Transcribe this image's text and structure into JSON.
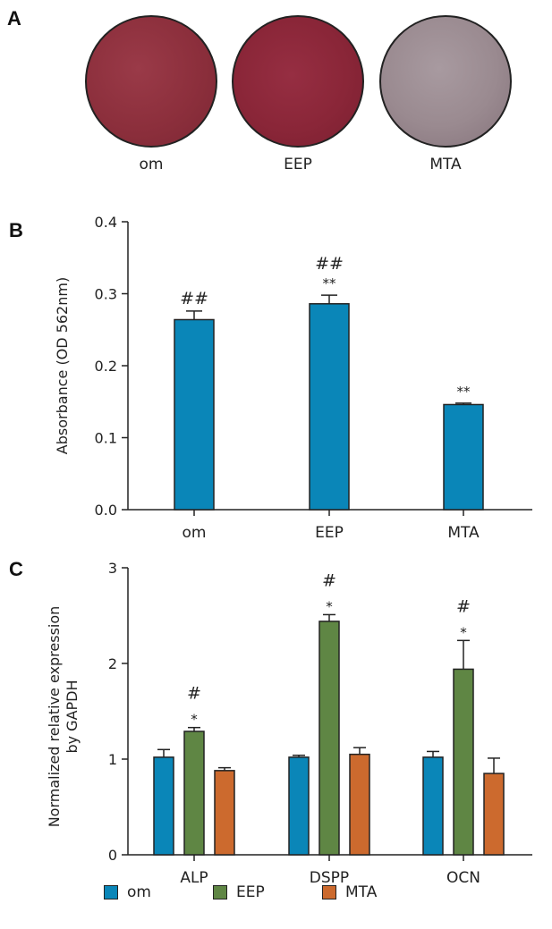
{
  "panel_a": {
    "letter": "A",
    "dishes": [
      {
        "label": "om",
        "color": "#8c2f3c"
      },
      {
        "label": "EEP",
        "color": "#8a2638"
      },
      {
        "label": "MTA",
        "color": "#9a8a90"
      }
    ]
  },
  "colors": {
    "om": "#0a86b8",
    "EEP": "#5f8644",
    "MTA": "#cc6a2e"
  },
  "chart_data": [
    {
      "type": "bar",
      "panel": "B",
      "ylabel": "Absorbance (OD 562nm)",
      "xlabel": "",
      "categories": [
        "om",
        "EEP",
        "MTA"
      ],
      "values": [
        0.264,
        0.286,
        0.146
      ],
      "errors": [
        0.012,
        0.012,
        0.002
      ],
      "annotations": [
        [
          "##"
        ],
        [
          "##",
          "**"
        ],
        [
          "**"
        ]
      ],
      "ylim": [
        0,
        0.4
      ],
      "yticks": [
        "0.0",
        "0.1",
        "0.2",
        "0.3",
        "0.4"
      ]
    },
    {
      "type": "bar",
      "panel": "C",
      "ylabel": "Normalized relative expression by GAPDH",
      "xlabel": "",
      "categories": [
        "ALP",
        "DSPP",
        "OCN"
      ],
      "series": [
        {
          "name": "om",
          "values": [
            1.02,
            1.02,
            1.02
          ],
          "errors": [
            0.08,
            0.02,
            0.06
          ]
        },
        {
          "name": "EEP",
          "values": [
            1.29,
            2.44,
            1.94
          ],
          "errors": [
            0.04,
            0.07,
            0.3
          ]
        },
        {
          "name": "MTA",
          "values": [
            0.88,
            1.05,
            0.85
          ],
          "errors": [
            0.03,
            0.07,
            0.16
          ]
        }
      ],
      "annotations": {
        "EEP": [
          [
            "#",
            "*"
          ],
          [
            "#",
            "*"
          ],
          [
            "#",
            "*"
          ]
        ]
      },
      "ylim": [
        0,
        3
      ],
      "yticks": [
        "0",
        "1",
        "2",
        "3"
      ],
      "legend": {
        "position": "bottom",
        "entries": [
          "om",
          "EEP",
          "MTA"
        ]
      }
    }
  ]
}
